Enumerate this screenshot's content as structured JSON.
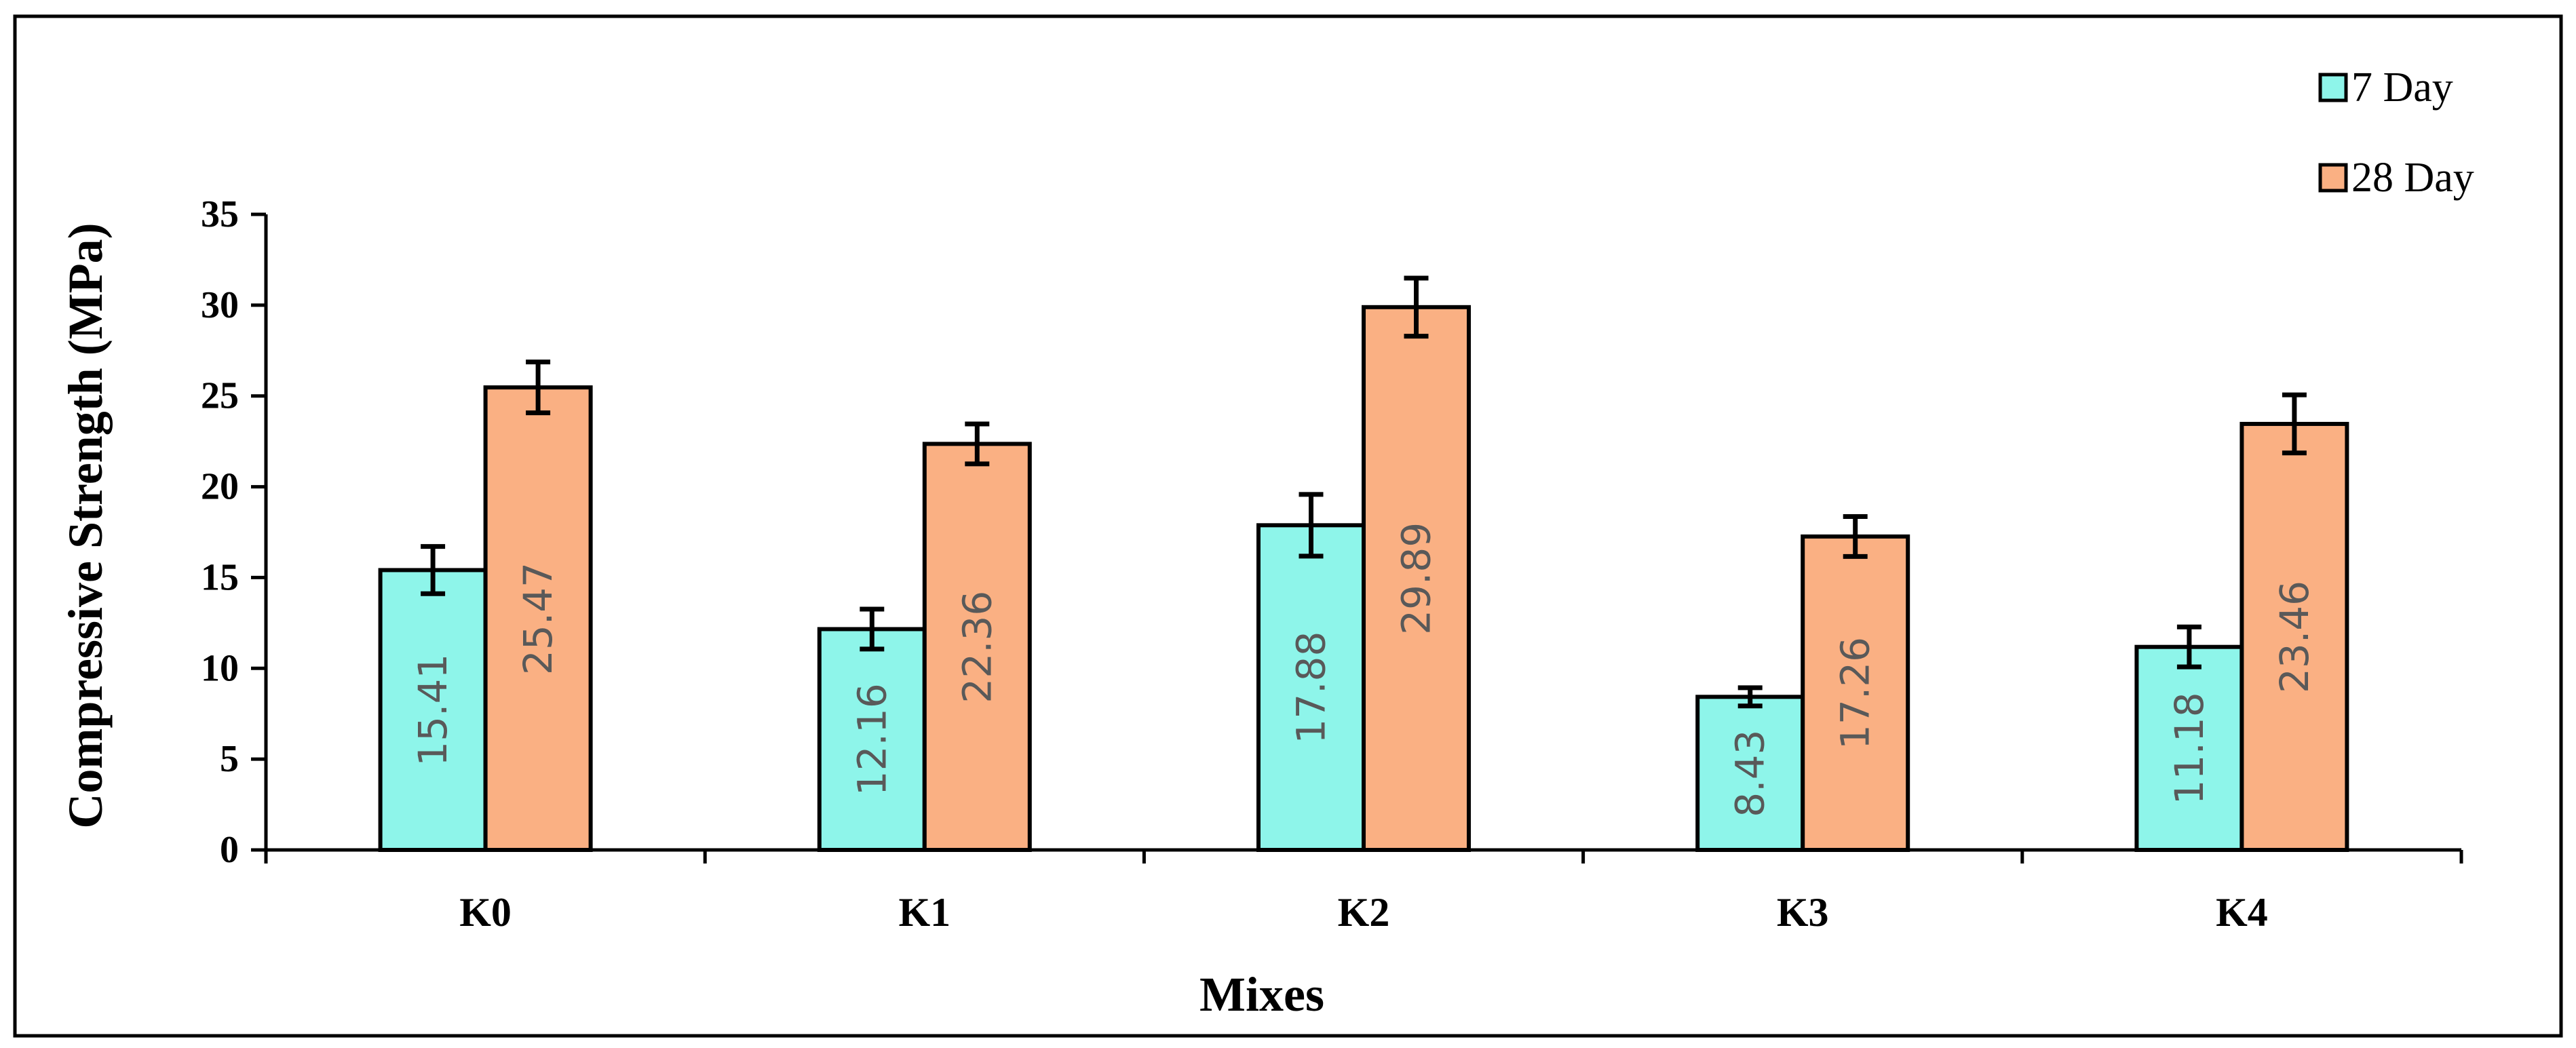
{
  "chart_data": {
    "type": "bar",
    "title": "",
    "xlabel": "Mixes",
    "ylabel": "Compressive Strength  (MPa)",
    "categories": [
      "K0",
      "K1",
      "K2",
      "K3",
      "K4"
    ],
    "ylim": [
      0,
      35
    ],
    "yticks": [
      0,
      5,
      10,
      15,
      20,
      25,
      30,
      35
    ],
    "grid": false,
    "legend_position": "top-right",
    "series": [
      {
        "name": "7 Day",
        "color": "#8EF5EA",
        "values": [
          15.41,
          12.16,
          17.88,
          8.43,
          11.18
        ],
        "labels": [
          "15.41",
          "12.16",
          "17.88",
          "8.43",
          "11.18"
        ],
        "errors": [
          1.3,
          1.1,
          1.7,
          0.5,
          1.1
        ]
      },
      {
        "name": "28 Day",
        "color": "#FAB083",
        "values": [
          25.47,
          22.36,
          29.89,
          17.26,
          23.46
        ],
        "labels": [
          "25.47",
          "22.36",
          "29.89",
          "17.26",
          "23.46"
        ],
        "errors": [
          1.4,
          1.1,
          1.6,
          1.1,
          1.6
        ]
      }
    ]
  }
}
